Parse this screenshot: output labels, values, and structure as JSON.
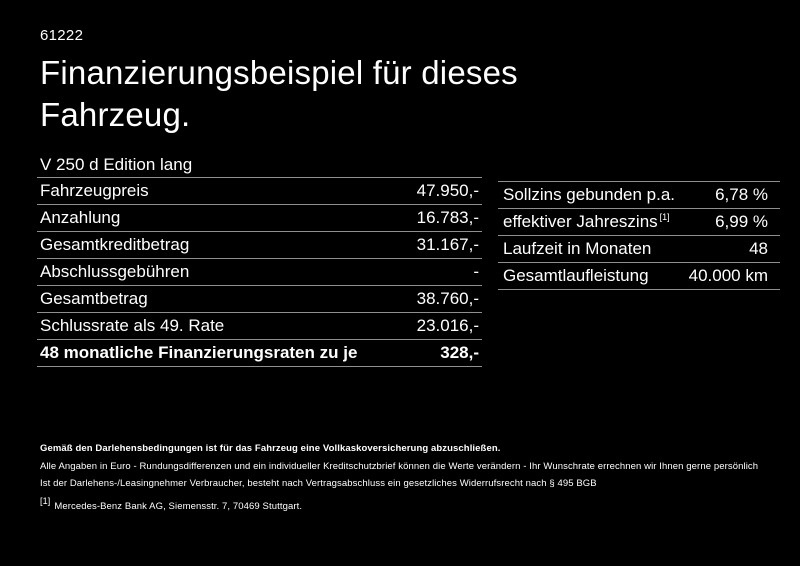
{
  "colors": {
    "background": "#000000",
    "text": "#ffffff",
    "divider": "#8f8f8f"
  },
  "header": {
    "ref_number": "61222",
    "title_line1": "Finanzierungsbeispiel für dieses",
    "title_line2": "Fahrzeug."
  },
  "financing_table": {
    "model": "V 250 d Edition lang",
    "rows": [
      {
        "label": "Fahrzeugpreis",
        "value": "47.950,-"
      },
      {
        "label": "Anzahlung",
        "value": "16.783,-"
      },
      {
        "label": "Gesamtkreditbetrag",
        "value": "31.167,-"
      },
      {
        "label": "Abschlussgebühren",
        "value": "-"
      },
      {
        "label": "Gesamtbetrag",
        "value": "38.760,-"
      },
      {
        "label": "Schlussrate als 49. Rate",
        "value": "23.016,-"
      },
      {
        "label": "48 monatliche Finanzierungsraten zu je",
        "value": "328,-"
      }
    ]
  },
  "conditions_table": {
    "rows": [
      {
        "label": "Sollzins gebunden p.a.",
        "marker": "",
        "value": "6,78 %"
      },
      {
        "label": "effektiver Jahreszins",
        "marker": "[1]",
        "value": "6,99 %"
      },
      {
        "label": "Laufzeit in Monaten",
        "marker": "",
        "value": "48"
      },
      {
        "label": "Gesamtlaufleistung",
        "marker": "",
        "value": "40.000 km"
      }
    ]
  },
  "footer": {
    "insurance_note": "Gemäß den Darlehensbedingungen ist für das Fahrzeug eine Vollkaskoversicherung abzuschließen.",
    "note_line1": "Alle Angaben in Euro - Rundungsdifferenzen und ein individueller Kreditschutzbrief können die Werte verändern - Ihr Wunschrate errechnen wir Ihnen gerne persönlich",
    "note_line2": "Ist der Darlehens-/Leasingnehmer Verbraucher, besteht nach Vertragsabschluss ein gesetzliches Widerrufsrecht nach § 495 BGB",
    "footnote_marker": "[1]",
    "footnote_text": "Mercedes-Benz Bank AG, Siemensstr. 7, 70469 Stuttgart."
  }
}
